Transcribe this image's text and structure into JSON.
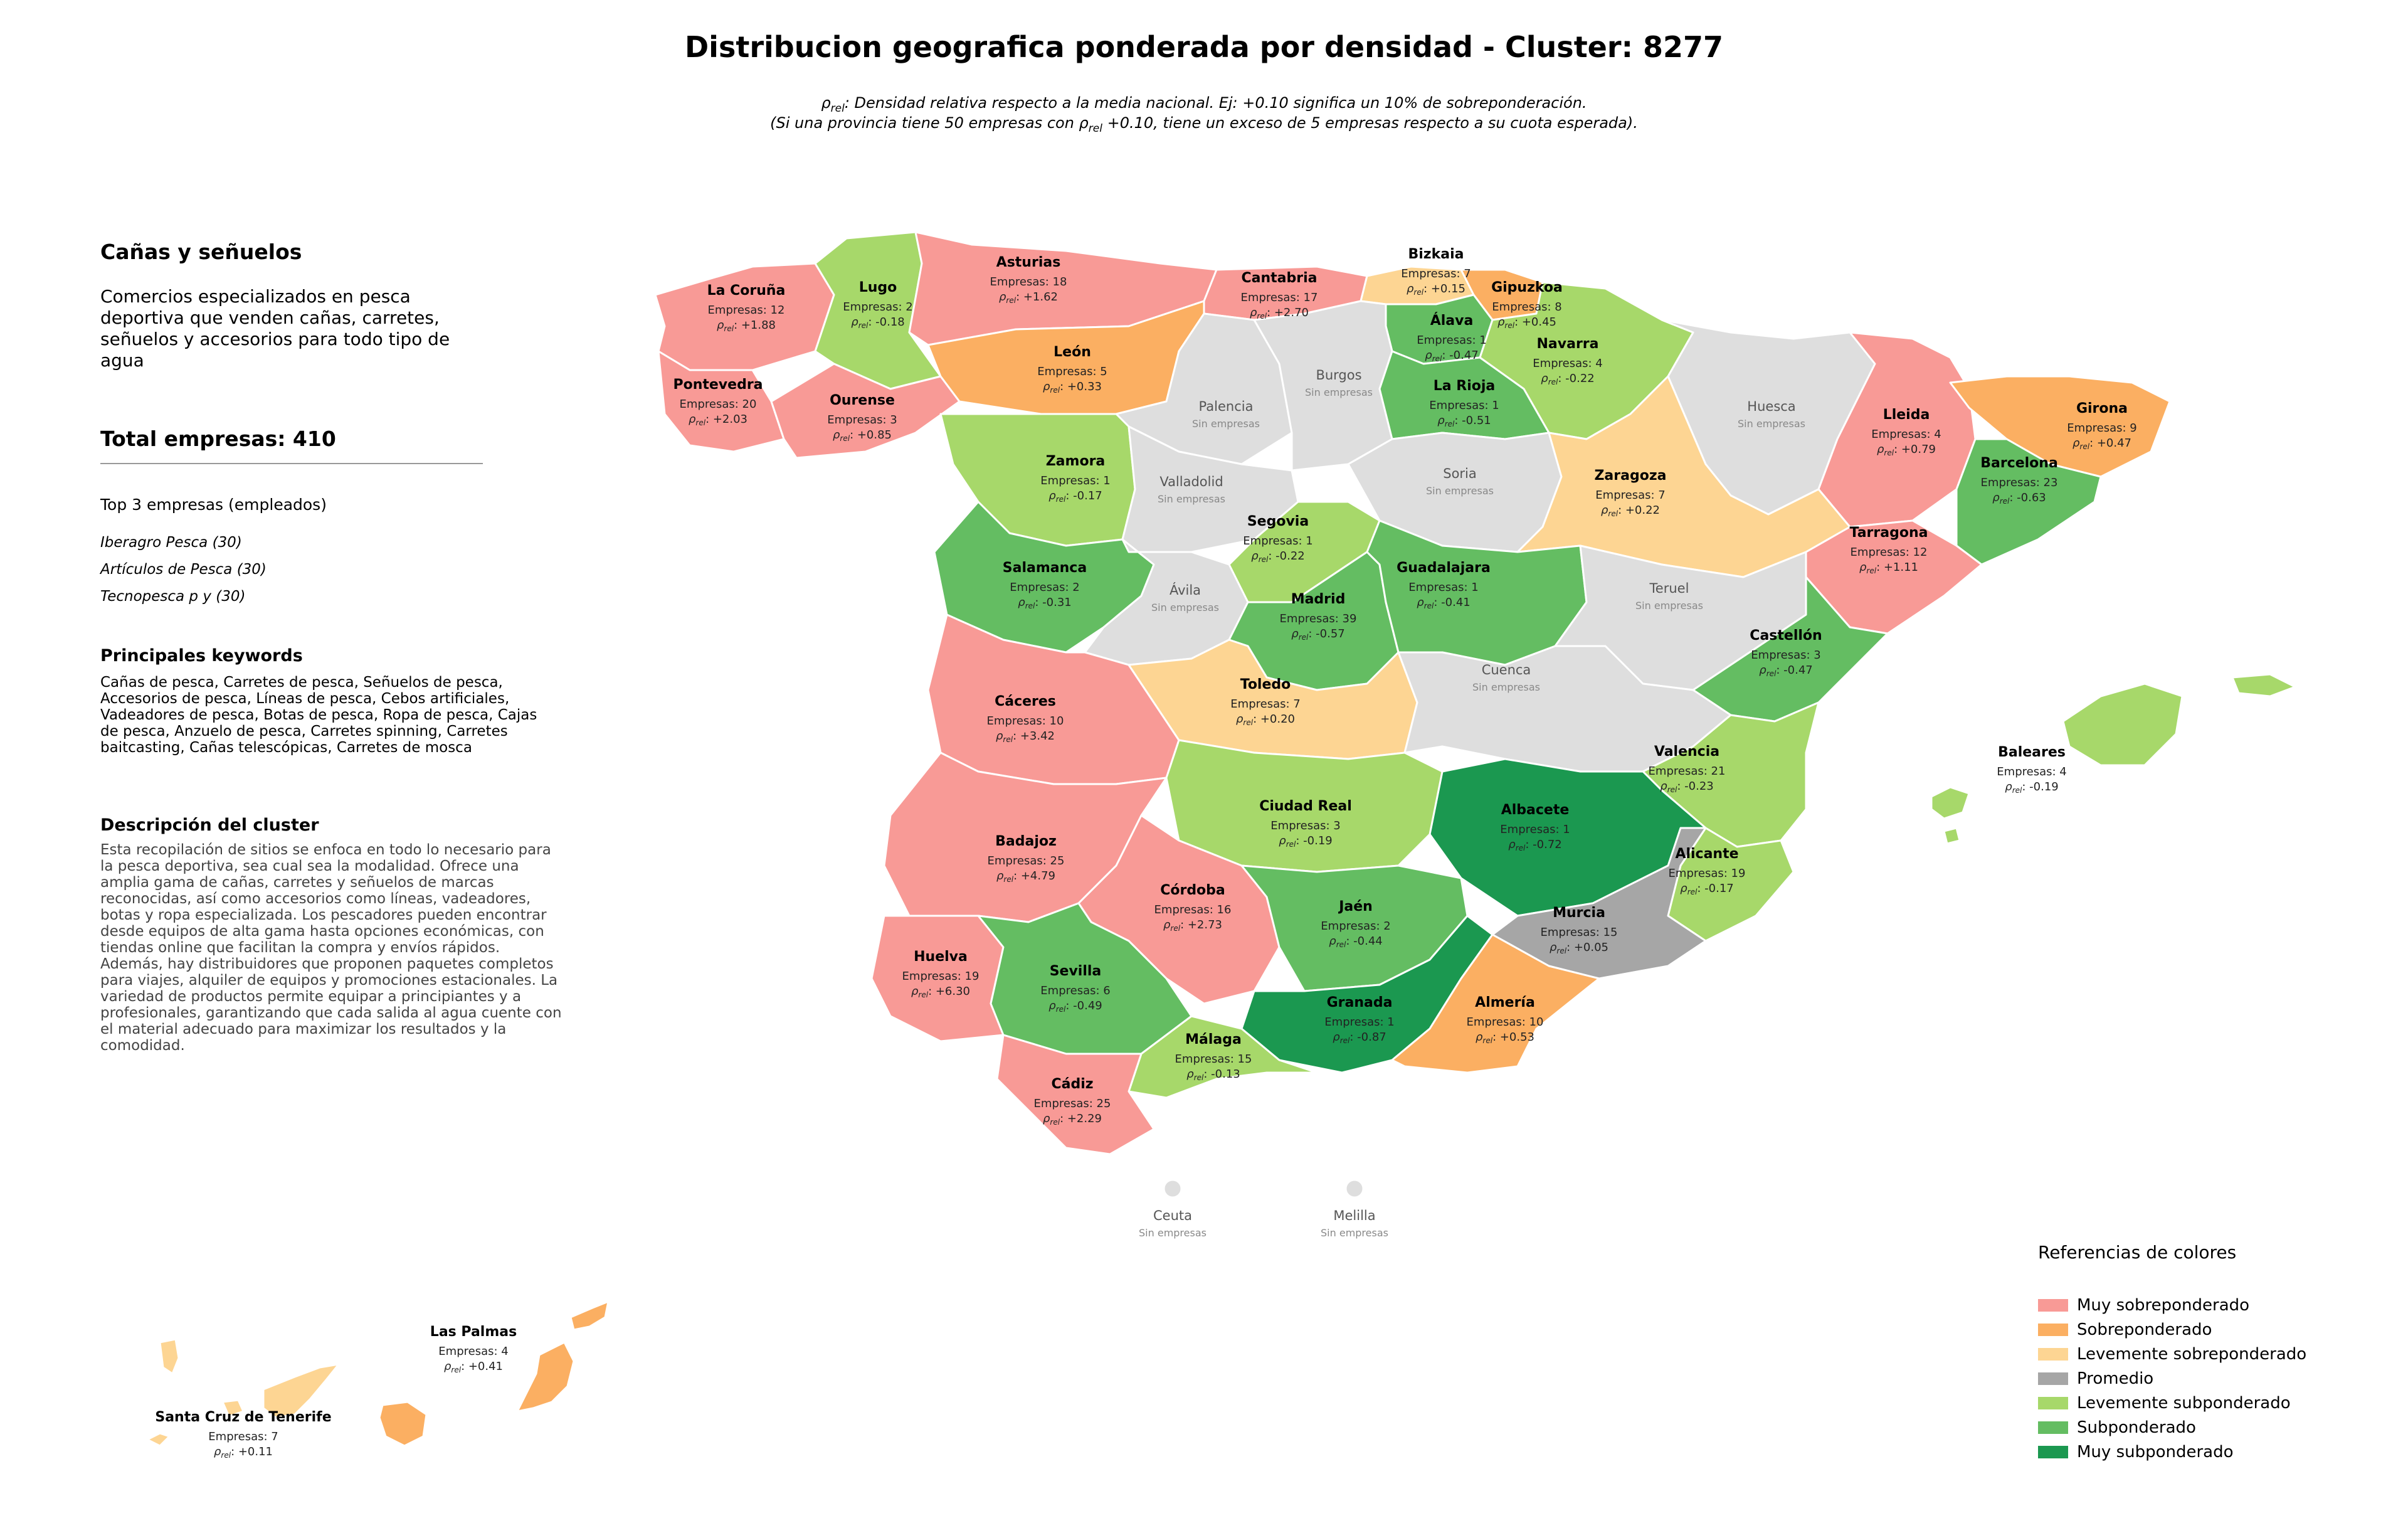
{
  "title": "Distribucion geografica ponderada por densidad - Cluster: 8277",
  "subtitle_1_prefix": "ρ",
  "subtitle_1_sub": "rel",
  "subtitle_1_text": ": Densidad relativa respecto a la media nacional. Ej: +0.10 significa un 10% de sobreponderación.",
  "subtitle_2_a": "(Si una provincia tiene 50 empresas con ρ",
  "subtitle_2_sub": "rel",
  "subtitle_2_b": " +0.10, tiene un exceso de 5 empresas respecto a su cuota esperada).",
  "side": {
    "cluster_name": "Cañas y señuelos",
    "cluster_short_desc": "Comercios especializados en pesca deportiva que venden cañas, carretes, señuelos y accesorios para todo tipo de agua",
    "total_label": "Total empresas: 410",
    "top3_header": "Top 3 empresas (empleados)",
    "top3": [
      "Iberagro Pesca (30)",
      "Artículos de Pesca (30)",
      "Tecnopesca p y (30)"
    ],
    "keywords_header": "Principales keywords",
    "keywords": "Cañas de pesca, Carretes de pesca, Señuelos de pesca, Accesorios de pesca, Líneas de pesca, Cebos artificiales, Vadeadores de pesca, Botas de pesca, Ropa de pesca, Cajas de pesca, Anzuelo de pesca, Carretes spinning, Carretes baitcasting, Cañas telescópicas, Carretes de mosca",
    "description_header": "Descripción del cluster",
    "description": "Esta recopilación de sitios se enfoca en todo lo necesario para la pesca deportiva, sea cual sea la modalidad. Ofrece una amplia gama de cañas, carretes y señuelos de marcas reconocidas, así como accesorios como líneas, vadeadores, botas y ropa especializada. Los pescadores pueden encontrar desde equipos de alta gama hasta opciones económicas, con tiendas online que facilitan la compra y envíos rápidos. Además, hay distribuidores que proponen paquetes completos para viajes, alquiler de equipos y promociones estacionales. La variedad de productos permite equipar a principiantes y a profesionales, garantizando que cada salida al agua cuente con el material adecuado para maximizar los resultados y la comodidad."
  },
  "colors": {
    "muy_sobre": "#f89a96",
    "sobre": "#fbaf62",
    "lev_sobre": "#fdd593",
    "promedio": "#a6a6a6",
    "lev_sub": "#a7d86a",
    "sub": "#64bd62",
    "muy_sub": "#1b9850",
    "sin": "#dedede",
    "border": "#ffffff"
  },
  "legend": {
    "title": "Referencias de colores",
    "items": [
      {
        "label": "Muy sobreponderado",
        "color": "#f89a96"
      },
      {
        "label": "Sobreponderado",
        "color": "#fbaf62"
      },
      {
        "label": "Levemente sobreponderado",
        "color": "#fdd593"
      },
      {
        "label": "Promedio",
        "color": "#a6a6a6"
      },
      {
        "label": "Levemente subponderado",
        "color": "#a7d86a"
      },
      {
        "label": "Subponderado",
        "color": "#64bd62"
      },
      {
        "label": "Muy subponderado",
        "color": "#1b9850"
      }
    ]
  },
  "labels": {
    "empresas_prefix": "Empresas: ",
    "rho": "ρ",
    "rel": "rel",
    "sin_empresas": "Sin empresas"
  },
  "provinces": [
    {
      "id": "coruna",
      "name": "La Coruña",
      "empresas": 12,
      "rho": "+1.88",
      "cat": "muy_sobre"
    },
    {
      "id": "lugo",
      "name": "Lugo",
      "empresas": 2,
      "rho": "-0.18",
      "cat": "lev_sub"
    },
    {
      "id": "asturias",
      "name": "Asturias",
      "empresas": 18,
      "rho": "+1.62",
      "cat": "muy_sobre"
    },
    {
      "id": "cantabria",
      "name": "Cantabria",
      "empresas": 17,
      "rho": "+2.70",
      "cat": "muy_sobre"
    },
    {
      "id": "bizkaia",
      "name": "Bizkaia",
      "empresas": 7,
      "rho": "+0.15",
      "cat": "lev_sobre"
    },
    {
      "id": "gipuzkoa",
      "name": "Gipuzkoa",
      "empresas": 8,
      "rho": "+0.45",
      "cat": "sobre"
    },
    {
      "id": "alava",
      "name": "Álava",
      "empresas": 1,
      "rho": "-0.47",
      "cat": "sub"
    },
    {
      "id": "navarra",
      "name": "Navarra",
      "empresas": 4,
      "rho": "-0.22",
      "cat": "lev_sub"
    },
    {
      "id": "pontevedra",
      "name": "Pontevedra",
      "empresas": 20,
      "rho": "+2.03",
      "cat": "muy_sobre"
    },
    {
      "id": "ourense",
      "name": "Ourense",
      "empresas": 3,
      "rho": "+0.85",
      "cat": "muy_sobre"
    },
    {
      "id": "leon",
      "name": "León",
      "empresas": 5,
      "rho": "+0.33",
      "cat": "sobre"
    },
    {
      "id": "palencia",
      "name": "Palencia",
      "empresas": null,
      "rho": null,
      "cat": "sin"
    },
    {
      "id": "burgos",
      "name": "Burgos",
      "empresas": null,
      "rho": null,
      "cat": "sin"
    },
    {
      "id": "larioja",
      "name": "La Rioja",
      "empresas": 1,
      "rho": "-0.51",
      "cat": "sub"
    },
    {
      "id": "huesca",
      "name": "Huesca",
      "empresas": null,
      "rho": null,
      "cat": "sin"
    },
    {
      "id": "lleida",
      "name": "Lleida",
      "empresas": 4,
      "rho": "+0.79",
      "cat": "muy_sobre"
    },
    {
      "id": "girona",
      "name": "Girona",
      "empresas": 9,
      "rho": "+0.47",
      "cat": "sobre"
    },
    {
      "id": "barcelona",
      "name": "Barcelona",
      "empresas": 23,
      "rho": "-0.63",
      "cat": "sub"
    },
    {
      "id": "zamora",
      "name": "Zamora",
      "empresas": 1,
      "rho": "-0.17",
      "cat": "lev_sub"
    },
    {
      "id": "valladolid",
      "name": "Valladolid",
      "empresas": null,
      "rho": null,
      "cat": "sin"
    },
    {
      "id": "soria",
      "name": "Soria",
      "empresas": null,
      "rho": null,
      "cat": "sin"
    },
    {
      "id": "zaragoza",
      "name": "Zaragoza",
      "empresas": 7,
      "rho": "+0.22",
      "cat": "lev_sobre"
    },
    {
      "id": "tarragona",
      "name": "Tarragona",
      "empresas": 12,
      "rho": "+1.11",
      "cat": "muy_sobre"
    },
    {
      "id": "segovia",
      "name": "Segovia",
      "empresas": 1,
      "rho": "-0.22",
      "cat": "lev_sub"
    },
    {
      "id": "salamanca",
      "name": "Salamanca",
      "empresas": 2,
      "rho": "-0.31",
      "cat": "sub"
    },
    {
      "id": "avila",
      "name": "Ávila",
      "empresas": null,
      "rho": null,
      "cat": "sin"
    },
    {
      "id": "madrid",
      "name": "Madrid",
      "empresas": 39,
      "rho": "-0.57",
      "cat": "sub"
    },
    {
      "id": "guadalajara",
      "name": "Guadalajara",
      "empresas": 1,
      "rho": "-0.41",
      "cat": "sub"
    },
    {
      "id": "teruel",
      "name": "Teruel",
      "empresas": null,
      "rho": null,
      "cat": "sin"
    },
    {
      "id": "castellon",
      "name": "Castellón",
      "empresas": 3,
      "rho": "-0.47",
      "cat": "sub"
    },
    {
      "id": "caceres",
      "name": "Cáceres",
      "empresas": 10,
      "rho": "+3.42",
      "cat": "muy_sobre"
    },
    {
      "id": "toledo",
      "name": "Toledo",
      "empresas": 7,
      "rho": "+0.20",
      "cat": "lev_sobre"
    },
    {
      "id": "cuenca",
      "name": "Cuenca",
      "empresas": null,
      "rho": null,
      "cat": "sin"
    },
    {
      "id": "valencia",
      "name": "Valencia",
      "empresas": 21,
      "rho": "-0.23",
      "cat": "lev_sub"
    },
    {
      "id": "baleares",
      "name": "Baleares",
      "empresas": 4,
      "rho": "-0.19",
      "cat": "lev_sub"
    },
    {
      "id": "badajoz",
      "name": "Badajoz",
      "empresas": 25,
      "rho": "+4.79",
      "cat": "muy_sobre"
    },
    {
      "id": "ciudadreal",
      "name": "Ciudad Real",
      "empresas": 3,
      "rho": "-0.19",
      "cat": "lev_sub"
    },
    {
      "id": "albacete",
      "name": "Albacete",
      "empresas": 1,
      "rho": "-0.72",
      "cat": "muy_sub"
    },
    {
      "id": "alicante",
      "name": "Alicante",
      "empresas": 19,
      "rho": "-0.17",
      "cat": "lev_sub"
    },
    {
      "id": "cordoba",
      "name": "Córdoba",
      "empresas": 16,
      "rho": "+2.73",
      "cat": "muy_sobre"
    },
    {
      "id": "jaen",
      "name": "Jaén",
      "empresas": 2,
      "rho": "-0.44",
      "cat": "sub"
    },
    {
      "id": "murcia",
      "name": "Murcia",
      "empresas": 15,
      "rho": "+0.05",
      "cat": "promedio"
    },
    {
      "id": "huelva",
      "name": "Huelva",
      "empresas": 19,
      "rho": "+6.30",
      "cat": "muy_sobre"
    },
    {
      "id": "sevilla",
      "name": "Sevilla",
      "empresas": 6,
      "rho": "-0.49",
      "cat": "sub"
    },
    {
      "id": "granada",
      "name": "Granada",
      "empresas": 1,
      "rho": "-0.87",
      "cat": "muy_sub"
    },
    {
      "id": "almeria",
      "name": "Almería",
      "empresas": 10,
      "rho": "+0.53",
      "cat": "sobre"
    },
    {
      "id": "malaga",
      "name": "Málaga",
      "empresas": 15,
      "rho": "-0.13",
      "cat": "lev_sub"
    },
    {
      "id": "cadiz",
      "name": "Cádiz",
      "empresas": 25,
      "rho": "+2.29",
      "cat": "muy_sobre"
    },
    {
      "id": "ceuta",
      "name": "Ceuta",
      "empresas": null,
      "rho": null,
      "cat": "sin"
    },
    {
      "id": "melilla",
      "name": "Melilla",
      "empresas": null,
      "rho": null,
      "cat": "sin"
    },
    {
      "id": "laspalmas",
      "name": "Las Palmas",
      "empresas": 4,
      "rho": "+0.41",
      "cat": "sobre"
    },
    {
      "id": "tenerife",
      "name": "Santa Cruz de Tenerife",
      "empresas": 7,
      "rho": "+0.11",
      "cat": "lev_sobre"
    }
  ]
}
